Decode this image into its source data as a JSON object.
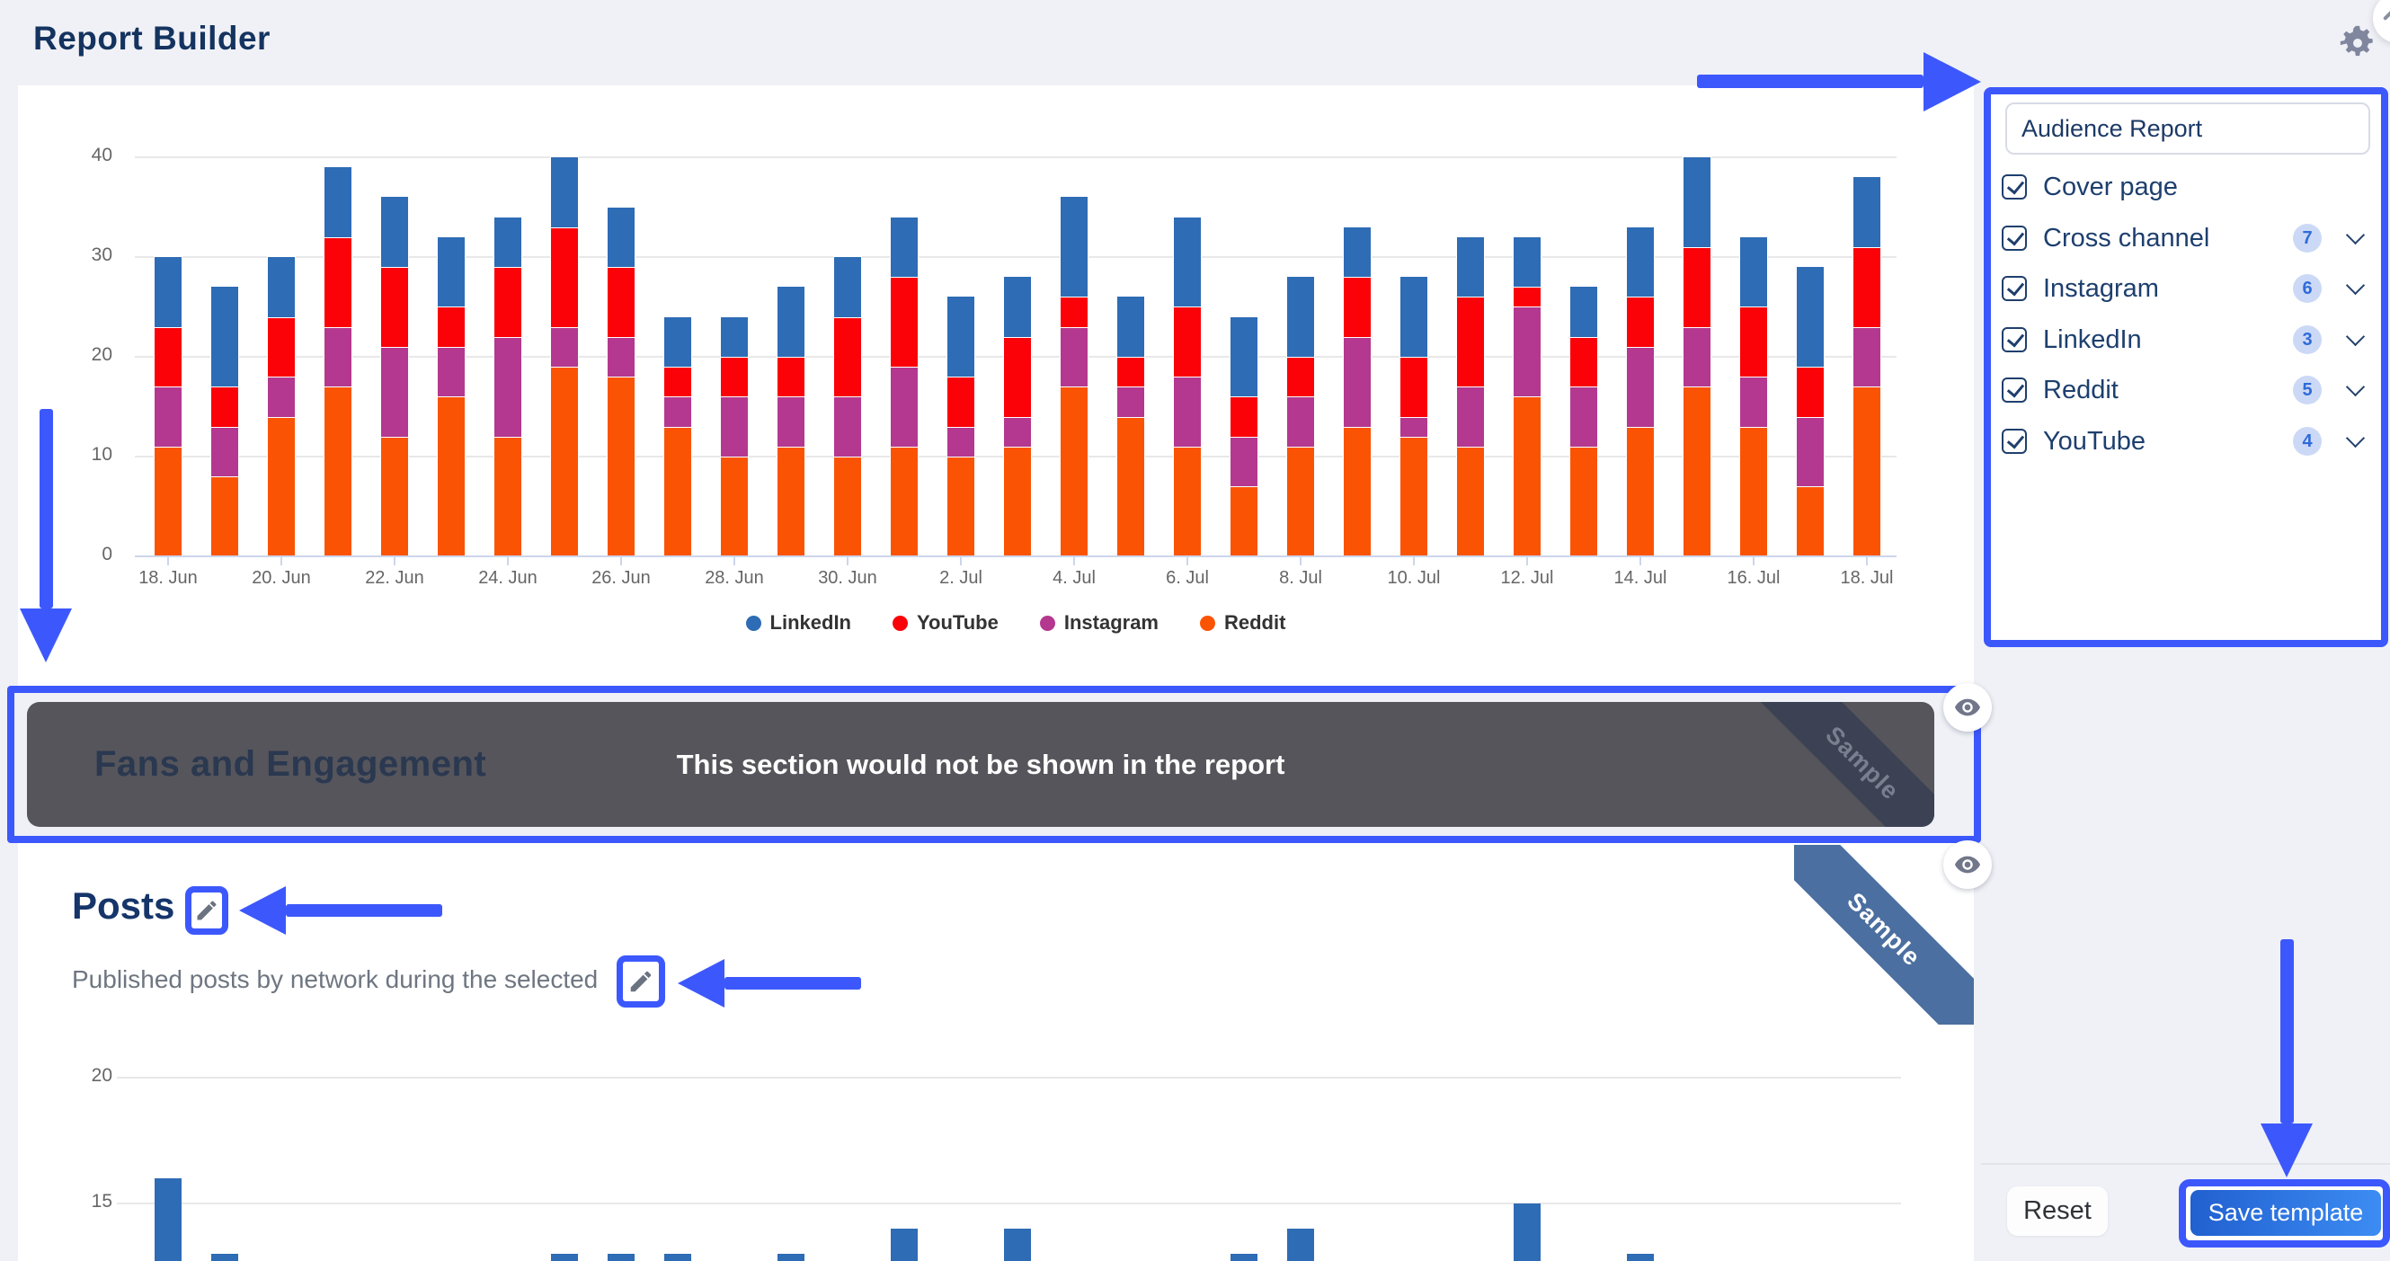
{
  "app": {
    "title": "Report Builder"
  },
  "topbar": {
    "gear_icon": "settings-gear",
    "corner_button_icon": "edit-pencil"
  },
  "sidebar": {
    "title": "Audience Report",
    "items": [
      {
        "label": "Cover page",
        "checked": true,
        "count": null,
        "expandable": false
      },
      {
        "label": "Cross channel",
        "checked": true,
        "count": "7",
        "expandable": true
      },
      {
        "label": "Instagram",
        "checked": true,
        "count": "6",
        "expandable": true
      },
      {
        "label": "LinkedIn",
        "checked": true,
        "count": "3",
        "expandable": true
      },
      {
        "label": "Reddit",
        "checked": true,
        "count": "5",
        "expandable": true
      },
      {
        "label": "YouTube",
        "checked": true,
        "count": "4",
        "expandable": true
      }
    ],
    "footer": {
      "reset": "Reset",
      "save": "Save template"
    }
  },
  "sections": {
    "fans": {
      "title": "Fans and Engagement",
      "overlay_message": "This section would not be shown in the report",
      "ribbon": "Sample",
      "eye_icon": "visibility-toggle"
    },
    "posts": {
      "title": "Posts",
      "description": "Published posts by network during the selected",
      "ribbon": "Sample",
      "eye_icon": "visibility-toggle"
    }
  },
  "colors": {
    "annotation_blue": "#3c58fc",
    "linkedin": "#2e6cb5",
    "youtube": "#fa0208",
    "instagram": "#b4388f",
    "reddit": "#fb5304",
    "navy_text": "#14335f",
    "overlay_gray": "#55555b",
    "save_gradient": [
      "#2160cf",
      "#3c8cf3"
    ]
  },
  "chart_data": [
    {
      "type": "bar",
      "stacked": true,
      "categories": [
        "18. Jun",
        "19. Jun",
        "20. Jun",
        "21. Jun",
        "22. Jun",
        "23. Jun",
        "24. Jun",
        "25. Jun",
        "26. Jun",
        "27. Jun",
        "28. Jun",
        "29. Jun",
        "30. Jun",
        "1. Jul",
        "2. Jul",
        "3. Jul",
        "4. Jul",
        "5. Jul",
        "6. Jul",
        "7. Jul",
        "8. Jul",
        "9. Jul",
        "10. Jul",
        "11. Jul",
        "12. Jul",
        "13. Jul",
        "14. Jul",
        "15. Jul",
        "16. Jul",
        "17. Jul",
        "18. Jul"
      ],
      "x_tick_labels": [
        "18. Jun",
        "20. Jun",
        "22. Jun",
        "24. Jun",
        "26. Jun",
        "28. Jun",
        "30. Jun",
        "2. Jul",
        "4. Jul",
        "6. Jul",
        "8. Jul",
        "10. Jul",
        "12. Jul",
        "14. Jul",
        "16. Jul",
        "18. Jul"
      ],
      "series": [
        {
          "name": "LinkedIn",
          "color": "#2e6cb5",
          "values": [
            7,
            10,
            6,
            7,
            7,
            7,
            5,
            7,
            6,
            5,
            4,
            7,
            6,
            6,
            8,
            6,
            10,
            6,
            9,
            8,
            8,
            5,
            8,
            6,
            5,
            5,
            7,
            9,
            7,
            10,
            7
          ]
        },
        {
          "name": "YouTube",
          "color": "#fa0208",
          "values": [
            6,
            4,
            6,
            9,
            8,
            4,
            7,
            10,
            7,
            3,
            4,
            4,
            8,
            9,
            5,
            8,
            3,
            3,
            7,
            4,
            4,
            6,
            6,
            9,
            2,
            5,
            5,
            8,
            7,
            5,
            8
          ]
        },
        {
          "name": "Instagram",
          "color": "#b4388f",
          "values": [
            6,
            5,
            4,
            6,
            9,
            5,
            10,
            4,
            4,
            3,
            6,
            5,
            6,
            8,
            3,
            3,
            6,
            3,
            7,
            5,
            5,
            9,
            2,
            6,
            9,
            6,
            8,
            6,
            5,
            7,
            6
          ]
        },
        {
          "name": "Reddit",
          "color": "#fb5304",
          "values": [
            11,
            8,
            14,
            17,
            12,
            16,
            12,
            19,
            18,
            13,
            10,
            11,
            10,
            11,
            10,
            11,
            17,
            14,
            11,
            7,
            11,
            13,
            12,
            11,
            16,
            11,
            13,
            17,
            13,
            7,
            17
          ]
        }
      ],
      "stack_order_bottom_to_top": [
        "Reddit",
        "Instagram",
        "YouTube",
        "LinkedIn"
      ],
      "ylim": [
        0,
        40
      ],
      "yticks": [
        0,
        10,
        20,
        30,
        40
      ],
      "grid": true,
      "legend_position": "bottom",
      "legend_order": [
        "LinkedIn",
        "YouTube",
        "Instagram",
        "Reddit"
      ]
    },
    {
      "type": "bar",
      "stacked": false,
      "yticks": [
        15,
        20
      ],
      "grid": true,
      "note": "Posts-per-day chart cropped by bottom edge of screenshot; bar bases not visible, values read at visible tops",
      "series": [
        {
          "name": "Posts",
          "color": "#2e6cb5",
          "points": [
            {
              "x": "18. Jun",
              "y": 16
            },
            {
              "x": "19. Jun",
              "y": 13
            },
            {
              "x": "25. Jun",
              "y": 13
            },
            {
              "x": "26. Jun",
              "y": 13
            },
            {
              "x": "27. Jun",
              "y": 13
            },
            {
              "x": "29. Jun",
              "y": 13
            },
            {
              "x": "1. Jul",
              "y": 14
            },
            {
              "x": "3. Jul",
              "y": 14
            },
            {
              "x": "7. Jul",
              "y": 13
            },
            {
              "x": "8. Jul",
              "y": 14
            },
            {
              "x": "12. Jul",
              "y": 15
            },
            {
              "x": "14. Jul",
              "y": 13
            }
          ]
        }
      ]
    }
  ]
}
